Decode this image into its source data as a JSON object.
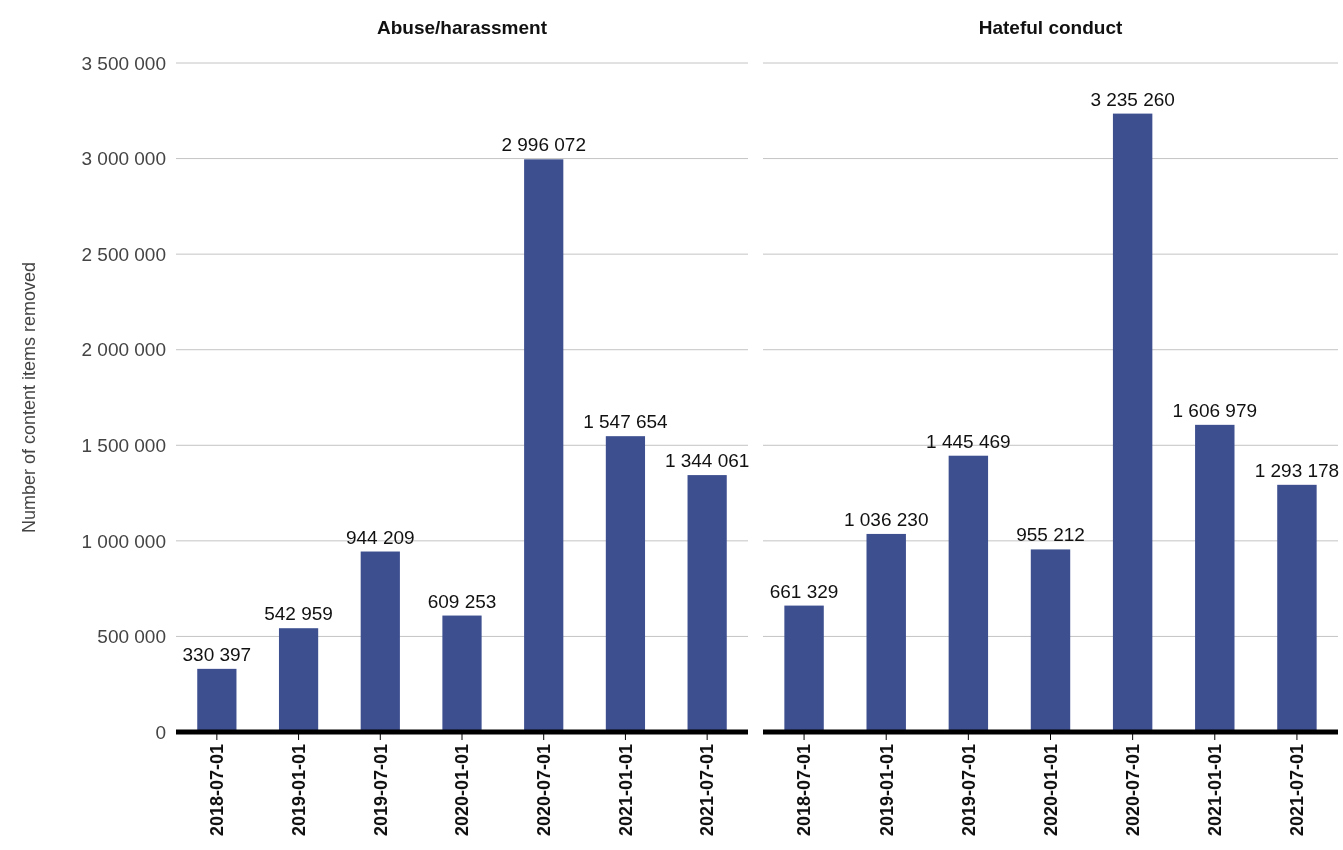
{
  "chart_data": [
    {
      "type": "bar",
      "title": "Abuse/harassment",
      "ylabel": "Number of content items removed",
      "categories": [
        "2018-07-01",
        "2019-01-01",
        "2019-07-01",
        "2020-01-01",
        "2020-07-01",
        "2021-01-01",
        "2021-07-01"
      ],
      "series": [
        {
          "color": "#3d4f8f",
          "values": [
            330397,
            542959,
            944209,
            609253,
            2996072,
            1547654,
            1344061
          ],
          "value_labels": [
            "330 397",
            "542 959",
            "944 209",
            "609 253",
            "2 996 072",
            "1 547 654",
            "1 344 061"
          ]
        }
      ],
      "ylim": [
        0,
        3500000
      ],
      "yticks": [
        {
          "value": 0,
          "label": "0"
        },
        {
          "value": 500000,
          "label": "500 000"
        },
        {
          "value": 1000000,
          "label": "1 000 000"
        },
        {
          "value": 1500000,
          "label": "1 500 000"
        },
        {
          "value": 2000000,
          "label": "2 000 000"
        },
        {
          "value": 2500000,
          "label": "2 500 000"
        },
        {
          "value": 3000000,
          "label": "3 000 000"
        },
        {
          "value": 3500000,
          "label": "3 500 000"
        }
      ],
      "grid": "y"
    },
    {
      "type": "bar",
      "title": "Hateful conduct",
      "categories": [
        "2018-07-01",
        "2019-01-01",
        "2019-07-01",
        "2020-01-01",
        "2020-07-01",
        "2021-01-01",
        "2021-07-01"
      ],
      "series": [
        {
          "color": "#3d4f8f",
          "values": [
            661329,
            1036230,
            1445469,
            955212,
            3235260,
            1606979,
            1293178
          ],
          "value_labels": [
            "661 329",
            "1 036 230",
            "1 445 469",
            "955 212",
            "3 235 260",
            "1 606 979",
            "1 293 178"
          ]
        }
      ],
      "ylim": [
        0,
        3500000
      ],
      "yticks": [
        0,
        500000,
        1000000,
        1500000,
        2000000,
        2500000,
        3000000,
        3500000
      ],
      "grid": "y",
      "tick_labels": "x"
    }
  ]
}
